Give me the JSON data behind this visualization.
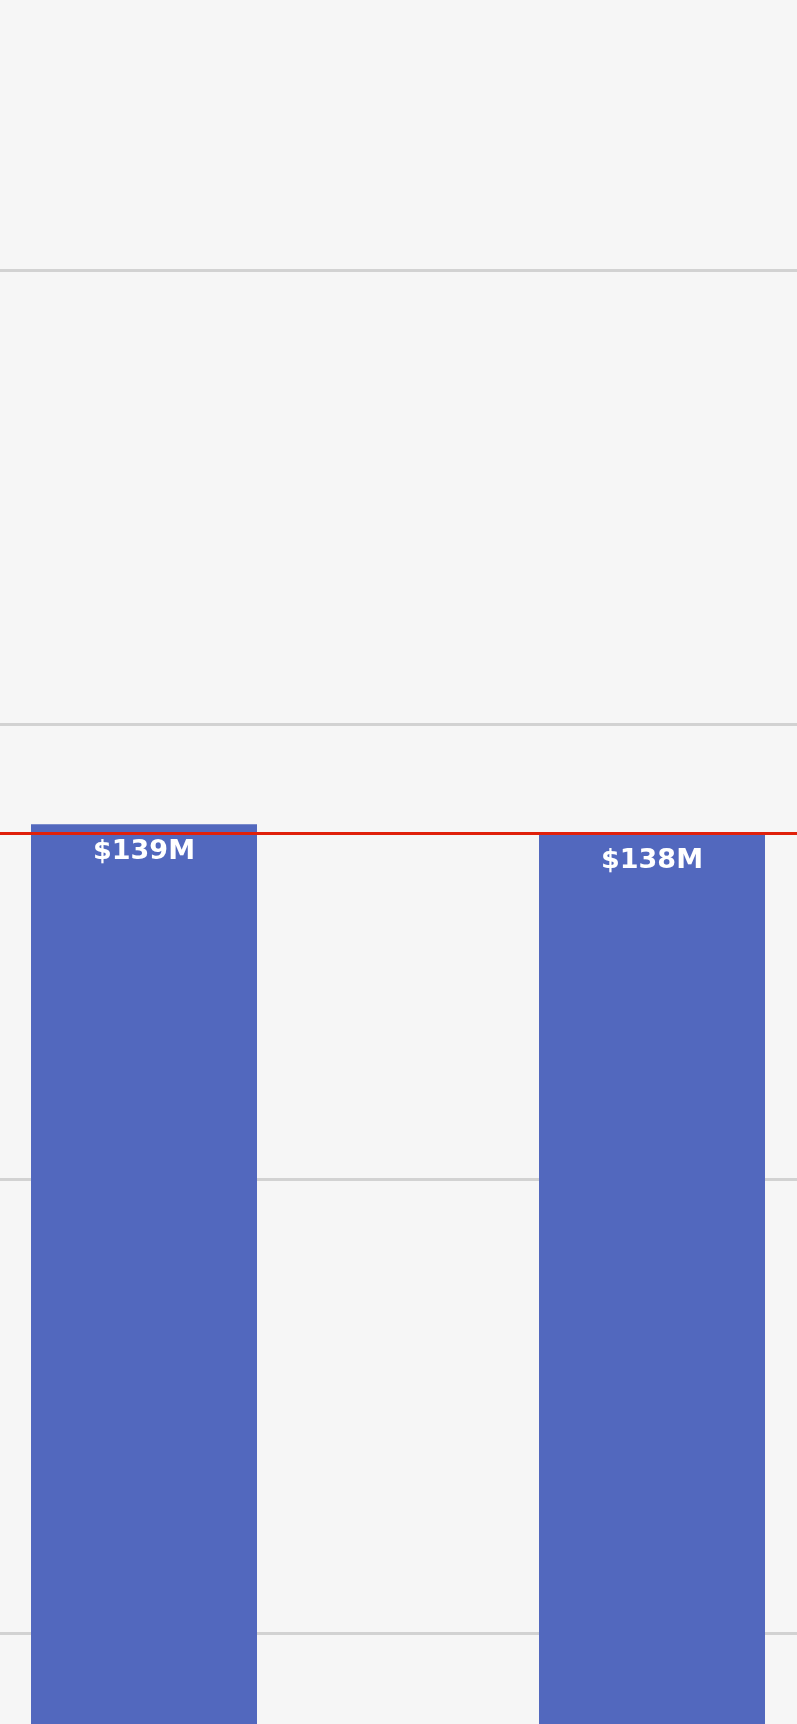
{
  "chart_data": {
    "type": "bar",
    "categories": [
      null,
      null
    ],
    "series": [
      {
        "color": "#5268be",
        "values": [
          139,
          138
        ],
        "value_labels": [
          "$139M",
          "$138M"
        ]
      }
    ],
    "ylim": [
      40,
      200
    ],
    "yticks": [
      {
        "value": 50,
        "label": null
      },
      {
        "value": 100,
        "label": null
      },
      {
        "value": 150,
        "label": null
      },
      {
        "value": 200,
        "label": null
      }
    ],
    "grid": "y",
    "tick_labels": false,
    "ref_lines": [
      {
        "axis": "y",
        "value": 138,
        "color": "#e0200a"
      }
    ]
  }
}
